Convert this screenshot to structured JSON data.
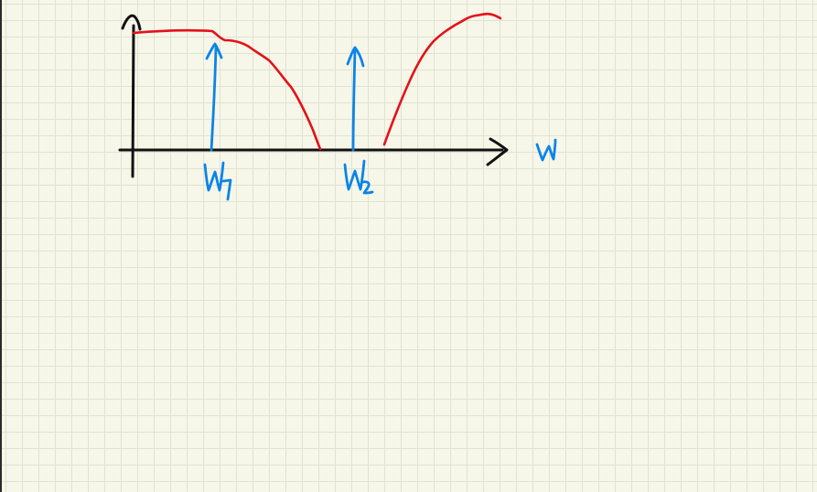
{
  "diagram": {
    "labels": {
      "axis_variable": "w",
      "impulse_1": "W₁",
      "impulse_2": "W₂"
    },
    "colors": {
      "paper": "#f6f7e8",
      "grid": "#dfe3d3",
      "axes": "#111111",
      "response_curve": "#e6101a",
      "annotations": "#0b84e8"
    }
  }
}
